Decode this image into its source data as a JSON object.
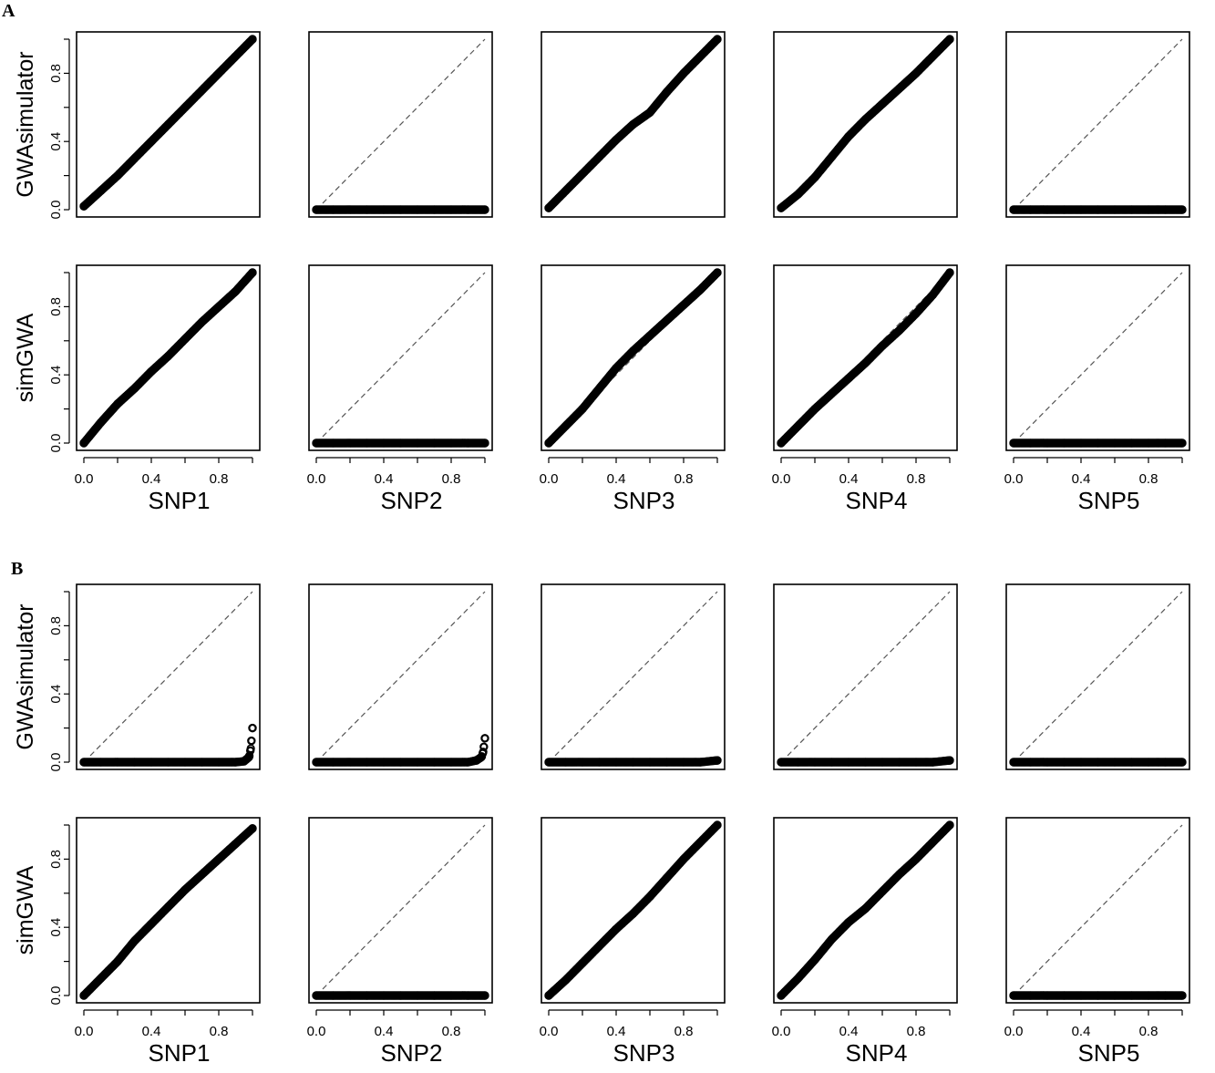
{
  "figure": {
    "panel_labels": [
      "A",
      "B"
    ],
    "row_labels": [
      "GWAsimulator",
      "simGWA"
    ],
    "column_labels": [
      "SNP1",
      "SNP2",
      "SNP3",
      "SNP4",
      "SNP5"
    ],
    "tick_labels": [
      "0.0",
      "0.4",
      "0.8"
    ]
  },
  "colors": {
    "points": "#000000",
    "frame": "#000000",
    "reference_line": "#555555"
  },
  "chart_data": [
    {
      "type": "scatter",
      "panel": "A",
      "row": "GWAsimulator",
      "column": "SNP1",
      "xlim": [
        0,
        1
      ],
      "ylim": [
        0,
        1
      ],
      "reference_line": "y=x",
      "series": [
        {
          "x": [
            0,
            0.1,
            0.2,
            0.3,
            0.4,
            0.5,
            0.6,
            0.7,
            0.8,
            0.9,
            1
          ],
          "y": [
            0.02,
            0.11,
            0.2,
            0.3,
            0.4,
            0.5,
            0.6,
            0.7,
            0.8,
            0.9,
            1
          ]
        }
      ]
    },
    {
      "type": "scatter",
      "panel": "A",
      "row": "GWAsimulator",
      "column": "SNP2",
      "xlim": [
        0,
        1
      ],
      "ylim": [
        0,
        1
      ],
      "reference_line": "y=x",
      "series": [
        {
          "x": [
            0,
            0.1,
            0.2,
            0.3,
            0.4,
            0.5,
            0.6,
            0.7,
            0.8,
            0.9,
            1
          ],
          "y": [
            0,
            0,
            0,
            0,
            0,
            0,
            0,
            0,
            0,
            0,
            0
          ]
        }
      ]
    },
    {
      "type": "scatter",
      "panel": "A",
      "row": "GWAsimulator",
      "column": "SNP3",
      "xlim": [
        0,
        1
      ],
      "ylim": [
        0,
        1
      ],
      "reference_line": "y=x",
      "series": [
        {
          "x": [
            0,
            0.1,
            0.2,
            0.3,
            0.4,
            0.5,
            0.6,
            0.7,
            0.8,
            0.9,
            1
          ],
          "y": [
            0.01,
            0.11,
            0.21,
            0.31,
            0.41,
            0.5,
            0.57,
            0.69,
            0.8,
            0.9,
            1
          ]
        }
      ]
    },
    {
      "type": "scatter",
      "panel": "A",
      "row": "GWAsimulator",
      "column": "SNP4",
      "xlim": [
        0,
        1
      ],
      "ylim": [
        0,
        1
      ],
      "reference_line": "y=x",
      "series": [
        {
          "x": [
            0,
            0.1,
            0.2,
            0.3,
            0.4,
            0.5,
            0.6,
            0.7,
            0.8,
            0.9,
            1
          ],
          "y": [
            0.01,
            0.09,
            0.19,
            0.31,
            0.43,
            0.53,
            0.62,
            0.71,
            0.8,
            0.9,
            1
          ]
        }
      ]
    },
    {
      "type": "scatter",
      "panel": "A",
      "row": "GWAsimulator",
      "column": "SNP5",
      "xlim": [
        0,
        1
      ],
      "ylim": [
        0,
        1
      ],
      "reference_line": "y=x",
      "series": [
        {
          "x": [
            0,
            0.1,
            0.2,
            0.3,
            0.4,
            0.5,
            0.6,
            0.7,
            0.8,
            0.9,
            1
          ],
          "y": [
            0,
            0,
            0,
            0,
            0,
            0,
            0,
            0,
            0,
            0,
            0
          ]
        }
      ]
    },
    {
      "type": "scatter",
      "panel": "A",
      "row": "simGWA",
      "column": "SNP1",
      "xlim": [
        0,
        1
      ],
      "ylim": [
        0,
        1
      ],
      "reference_line": "y=x",
      "series": [
        {
          "x": [
            0,
            0.1,
            0.2,
            0.3,
            0.4,
            0.5,
            0.6,
            0.7,
            0.8,
            0.9,
            1
          ],
          "y": [
            0,
            0.12,
            0.23,
            0.32,
            0.42,
            0.51,
            0.61,
            0.71,
            0.8,
            0.89,
            1
          ]
        }
      ]
    },
    {
      "type": "scatter",
      "panel": "A",
      "row": "simGWA",
      "column": "SNP2",
      "xlim": [
        0,
        1
      ],
      "ylim": [
        0,
        1
      ],
      "reference_line": "y=x",
      "series": [
        {
          "x": [
            0,
            0.1,
            0.2,
            0.3,
            0.4,
            0.5,
            0.6,
            0.7,
            0.8,
            0.9,
            1
          ],
          "y": [
            0,
            0,
            0,
            0,
            0,
            0,
            0,
            0,
            0,
            0,
            0
          ]
        }
      ]
    },
    {
      "type": "scatter",
      "panel": "A",
      "row": "simGWA",
      "column": "SNP3",
      "xlim": [
        0,
        1
      ],
      "ylim": [
        0,
        1
      ],
      "reference_line": "y=x",
      "series": [
        {
          "x": [
            0,
            0.1,
            0.2,
            0.3,
            0.4,
            0.5,
            0.6,
            0.7,
            0.8,
            0.9,
            1
          ],
          "y": [
            0,
            0.1,
            0.2,
            0.32,
            0.44,
            0.54,
            0.63,
            0.72,
            0.81,
            0.9,
            1
          ]
        }
      ]
    },
    {
      "type": "scatter",
      "panel": "A",
      "row": "simGWA",
      "column": "SNP4",
      "xlim": [
        0,
        1
      ],
      "ylim": [
        0,
        1
      ],
      "reference_line": "y=x",
      "series": [
        {
          "x": [
            0,
            0.1,
            0.2,
            0.3,
            0.4,
            0.5,
            0.6,
            0.7,
            0.8,
            0.9,
            1
          ],
          "y": [
            0,
            0.1,
            0.2,
            0.29,
            0.38,
            0.47,
            0.57,
            0.66,
            0.76,
            0.87,
            1
          ]
        }
      ]
    },
    {
      "type": "scatter",
      "panel": "A",
      "row": "simGWA",
      "column": "SNP5",
      "xlim": [
        0,
        1
      ],
      "ylim": [
        0,
        1
      ],
      "reference_line": "y=x",
      "series": [
        {
          "x": [
            0,
            0.1,
            0.2,
            0.3,
            0.4,
            0.5,
            0.6,
            0.7,
            0.8,
            0.9,
            1
          ],
          "y": [
            0,
            0,
            0,
            0,
            0,
            0,
            0,
            0,
            0,
            0,
            0
          ]
        }
      ]
    },
    {
      "type": "scatter",
      "panel": "B",
      "row": "GWAsimulator",
      "column": "SNP1",
      "xlim": [
        0,
        1
      ],
      "ylim": [
        0,
        1
      ],
      "reference_line": "y=x",
      "series": [
        {
          "x": [
            0,
            0.1,
            0.2,
            0.3,
            0.4,
            0.5,
            0.6,
            0.7,
            0.8,
            0.9,
            0.95,
            0.98,
            0.99,
            1
          ],
          "y": [
            0,
            0,
            0,
            0,
            0,
            0,
            0,
            0,
            0,
            0,
            0.005,
            0.03,
            0.08,
            0.2
          ]
        }
      ]
    },
    {
      "type": "scatter",
      "panel": "B",
      "row": "GWAsimulator",
      "column": "SNP2",
      "xlim": [
        0,
        1
      ],
      "ylim": [
        0,
        1
      ],
      "reference_line": "y=x",
      "series": [
        {
          "x": [
            0,
            0.1,
            0.2,
            0.3,
            0.4,
            0.5,
            0.6,
            0.7,
            0.8,
            0.9,
            0.95,
            0.98,
            0.99,
            1
          ],
          "y": [
            0,
            0,
            0,
            0,
            0,
            0,
            0,
            0,
            0,
            0,
            0.01,
            0.03,
            0.06,
            0.14
          ]
        }
      ]
    },
    {
      "type": "scatter",
      "panel": "B",
      "row": "GWAsimulator",
      "column": "SNP3",
      "xlim": [
        0,
        1
      ],
      "ylim": [
        0,
        1
      ],
      "reference_line": "y=x",
      "series": [
        {
          "x": [
            0,
            0.1,
            0.2,
            0.3,
            0.4,
            0.5,
            0.6,
            0.7,
            0.8,
            0.9,
            1
          ],
          "y": [
            0,
            0,
            0,
            0,
            0,
            0,
            0,
            0,
            0,
            0,
            0.01
          ]
        }
      ]
    },
    {
      "type": "scatter",
      "panel": "B",
      "row": "GWAsimulator",
      "column": "SNP4",
      "xlim": [
        0,
        1
      ],
      "ylim": [
        0,
        1
      ],
      "reference_line": "y=x",
      "series": [
        {
          "x": [
            0,
            0.1,
            0.2,
            0.3,
            0.4,
            0.5,
            0.6,
            0.7,
            0.8,
            0.9,
            1
          ],
          "y": [
            0,
            0,
            0,
            0,
            0,
            0,
            0,
            0,
            0,
            0,
            0.01
          ]
        }
      ]
    },
    {
      "type": "scatter",
      "panel": "B",
      "row": "GWAsimulator",
      "column": "SNP5",
      "xlim": [
        0,
        1
      ],
      "ylim": [
        0,
        1
      ],
      "reference_line": "y=x",
      "series": [
        {
          "x": [
            0,
            0.1,
            0.2,
            0.3,
            0.4,
            0.5,
            0.6,
            0.7,
            0.8,
            0.9,
            1
          ],
          "y": [
            0,
            0,
            0,
            0,
            0,
            0,
            0,
            0,
            0,
            0,
            0
          ]
        }
      ]
    },
    {
      "type": "scatter",
      "panel": "B",
      "row": "simGWA",
      "column": "SNP1",
      "xlim": [
        0,
        1
      ],
      "ylim": [
        0,
        1
      ],
      "reference_line": "y=x",
      "series": [
        {
          "x": [
            0,
            0.1,
            0.2,
            0.3,
            0.4,
            0.5,
            0.6,
            0.7,
            0.8,
            0.9,
            1
          ],
          "y": [
            0,
            0.1,
            0.2,
            0.32,
            0.42,
            0.52,
            0.62,
            0.71,
            0.8,
            0.89,
            0.98
          ]
        }
      ]
    },
    {
      "type": "scatter",
      "panel": "B",
      "row": "simGWA",
      "column": "SNP2",
      "xlim": [
        0,
        1
      ],
      "ylim": [
        0,
        1
      ],
      "reference_line": "y=x",
      "series": [
        {
          "x": [
            0,
            0.1,
            0.2,
            0.3,
            0.4,
            0.5,
            0.6,
            0.7,
            0.8,
            0.9,
            1
          ],
          "y": [
            0,
            0,
            0,
            0,
            0,
            0,
            0,
            0,
            0,
            0,
            0
          ]
        }
      ]
    },
    {
      "type": "scatter",
      "panel": "B",
      "row": "simGWA",
      "column": "SNP3",
      "xlim": [
        0,
        1
      ],
      "ylim": [
        0,
        1
      ],
      "reference_line": "y=x",
      "series": [
        {
          "x": [
            0,
            0.1,
            0.2,
            0.3,
            0.4,
            0.5,
            0.6,
            0.7,
            0.8,
            0.9,
            1
          ],
          "y": [
            0,
            0.09,
            0.19,
            0.29,
            0.39,
            0.48,
            0.58,
            0.69,
            0.8,
            0.9,
            1
          ]
        }
      ]
    },
    {
      "type": "scatter",
      "panel": "B",
      "row": "simGWA",
      "column": "SNP4",
      "xlim": [
        0,
        1
      ],
      "ylim": [
        0,
        1
      ],
      "reference_line": "y=x",
      "series": [
        {
          "x": [
            0,
            0.1,
            0.2,
            0.3,
            0.4,
            0.5,
            0.6,
            0.7,
            0.8,
            0.9,
            1
          ],
          "y": [
            0,
            0.1,
            0.21,
            0.33,
            0.43,
            0.51,
            0.61,
            0.71,
            0.8,
            0.9,
            1
          ]
        }
      ]
    },
    {
      "type": "scatter",
      "panel": "B",
      "row": "simGWA",
      "column": "SNP5",
      "xlim": [
        0,
        1
      ],
      "ylim": [
        0,
        1
      ],
      "reference_line": "y=x",
      "series": [
        {
          "x": [
            0,
            0.1,
            0.2,
            0.3,
            0.4,
            0.5,
            0.6,
            0.7,
            0.8,
            0.9,
            1
          ],
          "y": [
            0,
            0,
            0,
            0,
            0,
            0,
            0,
            0,
            0,
            0,
            0
          ]
        }
      ]
    }
  ]
}
